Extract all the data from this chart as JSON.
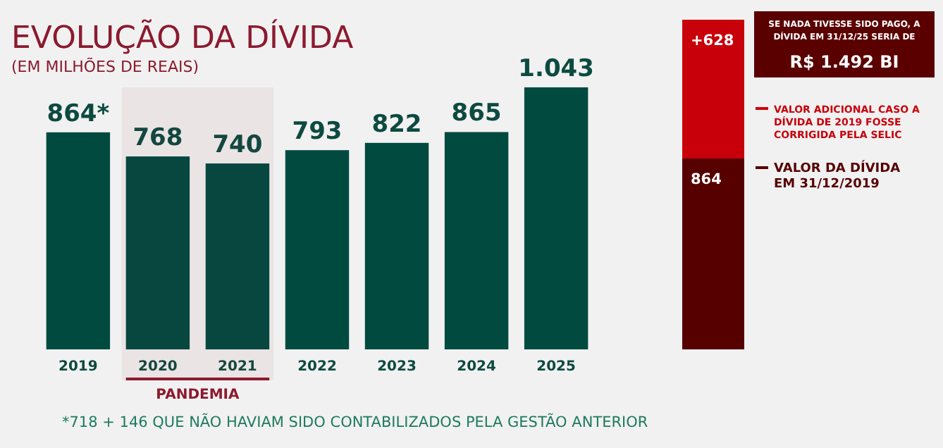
{
  "chart_data": [
    {
      "type": "bar",
      "title": "EVOLUÇÃO DA DÍVIDA",
      "subtitle": "(EM MILHÕES DE REAIS)",
      "categories": [
        "2019",
        "2020",
        "2021",
        "2022",
        "2023",
        "2024",
        "2025"
      ],
      "values": [
        864,
        768,
        740,
        793,
        822,
        865,
        1043
      ],
      "value_labels": [
        "864*",
        "768",
        "740",
        "793",
        "822",
        "865",
        "1.043"
      ],
      "color": "#004a40",
      "bands": [
        {
          "axis": "x",
          "from": "2020",
          "to": "2021",
          "label": "PANDEMIA",
          "color": "#8b1a2e"
        }
      ],
      "annotations": [
        "*718 + 146 QUE NÃO HAVIAM SIDO CONTABILIZADOS PELA GESTÃO ANTERIOR"
      ]
    },
    {
      "type": "bar",
      "stacked": true,
      "annotations": [
        "SE NADA TIVESSE SIDO PAGO, A DÍVIDA EM 31/12/25 SERIA DE",
        "R$ 1.492 BI"
      ],
      "categories": [
        null
      ],
      "legend": "right",
      "series": [
        {
          "name": "VALOR DA DÍVIDA EM 31/12/2019",
          "color": "#560000",
          "values": [
            864
          ],
          "value_labels": [
            "864"
          ]
        },
        {
          "name": "VALOR ADICIONAL CASO A DÍVIDA DE 2019 FOSSE CORRIGIDA PELA SELIC",
          "color": "#c8000a",
          "values": [
            628
          ],
          "value_labels": [
            "+628"
          ]
        }
      ]
    }
  ]
}
